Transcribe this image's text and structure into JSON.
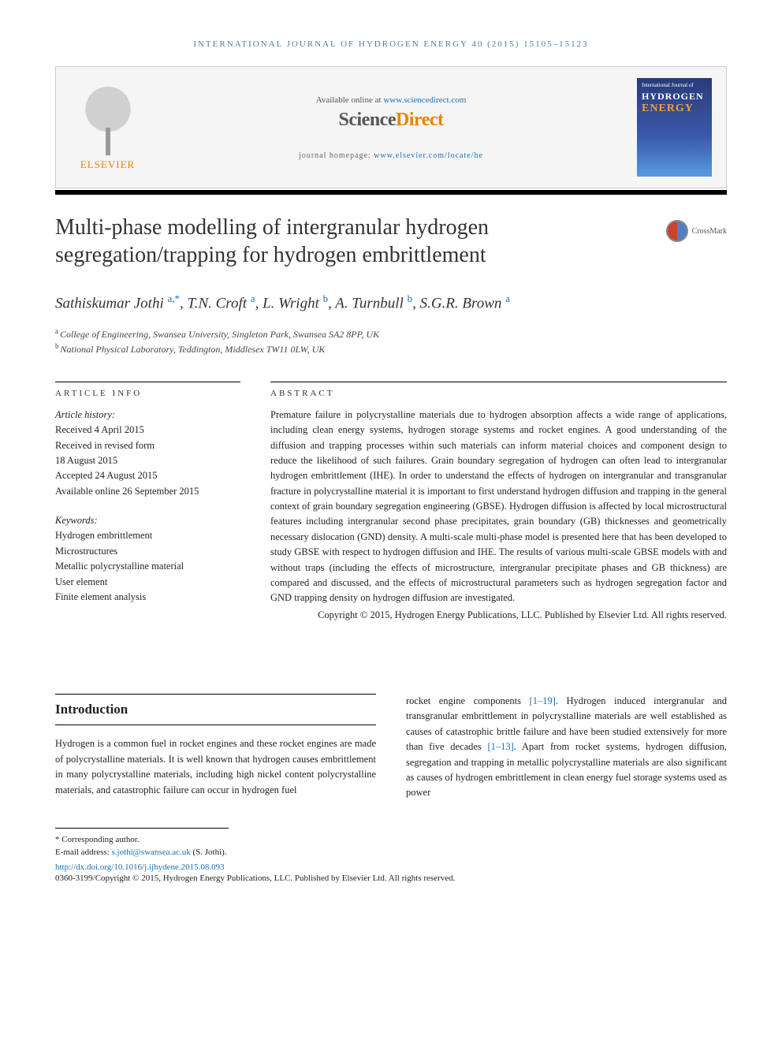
{
  "running_header": "INTERNATIONAL JOURNAL OF HYDROGEN ENERGY 40 (2015) 15105–15123",
  "top_box": {
    "elsevier_label": "ELSEVIER",
    "available_text": "Available online at ",
    "available_link": "www.sciencedirect.com",
    "sd_logo_prefix": "Science",
    "sd_logo_suffix": "Direct",
    "homepage_label": "journal homepage: ",
    "homepage_link": "www.elsevier.com/locate/he",
    "cover_small": "International Journal of",
    "cover_hydrogen": "HYDROGEN",
    "cover_energy": "ENERGY"
  },
  "crossmark_label": "CrossMark",
  "title": "Multi-phase modelling of intergranular hydrogen segregation/trapping for hydrogen embrittlement",
  "authors_html": "Sathiskumar Jothi <span class='sup'>a,*</span>, T.N. Croft <span class='sup'>a</span>, L. Wright <span class='sup'>b</span>, A. Turnbull <span class='sup'>b</span>, S.G.R. Brown <span class='sup'>a</span>",
  "affiliations": [
    {
      "label": "a",
      "text": "College of Engineering, Swansea University, Singleton Park, Swansea SA2 8PP, UK"
    },
    {
      "label": "b",
      "text": "National Physical Laboratory, Teddington, Middlesex TW11 0LW, UK"
    }
  ],
  "article_info": {
    "heading": "ARTICLE INFO",
    "history_label": "Article history:",
    "history": [
      "Received 4 April 2015",
      "Received in revised form",
      "18 August 2015",
      "Accepted 24 August 2015",
      "Available online 26 September 2015"
    ],
    "keywords_label": "Keywords:",
    "keywords": [
      "Hydrogen embrittlement",
      "Microstructures",
      "Metallic polycrystalline material",
      "User element",
      "Finite element analysis"
    ]
  },
  "abstract": {
    "heading": "ABSTRACT",
    "text": "Premature failure in polycrystalline materials due to hydrogen absorption affects a wide range of applications, including clean energy systems, hydrogen storage systems and rocket engines. A good understanding of the diffusion and trapping processes within such materials can inform material choices and component design to reduce the likelihood of such failures. Grain boundary segregation of hydrogen can often lead to intergranular hydrogen embrittlement (IHE). In order to understand the effects of hydrogen on intergranular and transgranular fracture in polycrystalline material it is important to first understand hydrogen diffusion and trapping in the general context of grain boundary segregation engineering (GBSE). Hydrogen diffusion is affected by local microstructural features including intergranular second phase precipitates, grain boundary (GB) thicknesses and geometrically necessary dislocation (GND) density. A multi-scale multi-phase model is presented here that has been developed to study GBSE with respect to hydrogen diffusion and IHE. The results of various multi-scale GBSE models with and without traps (including the effects of microstructure, intergranular precipitate phases and GB thickness) are compared and discussed, and the effects of microstructural parameters such as hydrogen segregation factor and GND trapping density on hydrogen diffusion are investigated.",
    "copyright": "Copyright © 2015, Hydrogen Energy Publications, LLC. Published by Elsevier Ltd. All rights reserved."
  },
  "intro": {
    "heading": "Introduction",
    "left_text": "Hydrogen is a common fuel in rocket engines and these rocket engines are made of polycrystalline materials. It is well known that hydrogen causes embrittlement in many polycrystalline materials, including high nickel content polycrystalline materials, and catastrophic failure can occur in hydrogen fuel",
    "right_pre": "rocket engine components ",
    "right_ref1": "[1–19]",
    "right_mid1": ". Hydrogen induced intergranular and transgranular embrittlement in polycrystalline materials are well established as causes of catastrophic brittle failure and have been studied extensively for more than five decades ",
    "right_ref2": "[1–13]",
    "right_mid2": ". Apart from rocket systems, hydrogen diffusion, segregation and trapping in metallic polycrystalline materials are also significant as causes of hydrogen embrittlement in clean energy fuel storage systems used as power"
  },
  "footnotes": {
    "corr_label": "* Corresponding author.",
    "email_label": "E-mail address: ",
    "email": "s.jothi@swansea.ac.uk",
    "email_suffix": " (S. Jothi).",
    "doi": "http://dx.doi.org/10.1016/j.ijhydene.2015.08.093",
    "bottom": "0360-3199/Copyright © 2015, Hydrogen Energy Publications, LLC. Published by Elsevier Ltd. All rights reserved."
  },
  "colors": {
    "link": "#1a6fb5",
    "elsevier_orange": "#e98300",
    "cover_gradient_top": "#2a3a7a",
    "cover_gradient_bottom": "#5a9ae0",
    "cover_energy": "#f0a030",
    "text": "#222222",
    "rule": "#000000"
  }
}
